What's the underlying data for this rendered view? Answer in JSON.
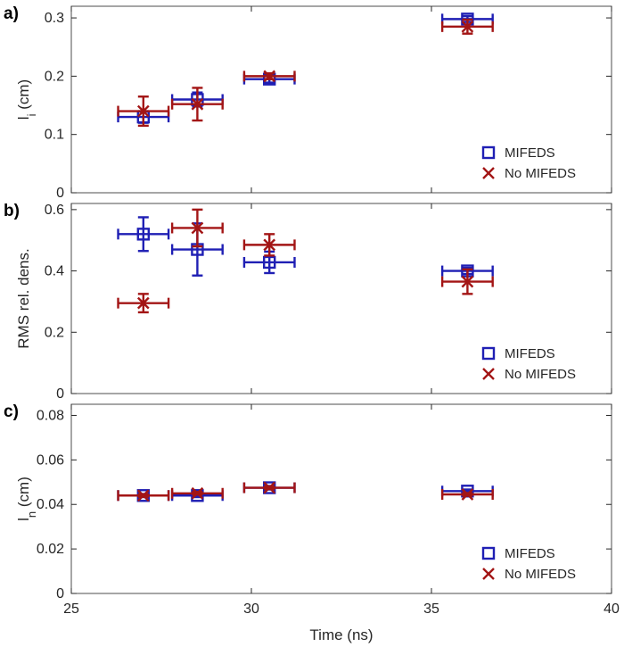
{
  "colors": {
    "mifeds": "#1f1fb4",
    "no_mifeds": "#a31515",
    "axis": "#262626",
    "frame": "#4d4d4d"
  },
  "chart_data": [
    {
      "type": "scatter",
      "panel_label": "a)",
      "ylabel": "l_i (cm)",
      "ylabel_main": "l",
      "ylabel_sub": "i",
      "ylabel_unit": " (cm)",
      "xlim": [
        25,
        40
      ],
      "ylim": [
        0,
        0.32
      ],
      "yticks": [
        0,
        0.1,
        0.2,
        0.3
      ],
      "ytick_labels": [
        "0",
        "0.1",
        "0.2",
        "0.3"
      ],
      "legend_position": "bottom-right",
      "series": [
        {
          "name": "MIFEDS",
          "marker": "square",
          "points": [
            {
              "x": 27.0,
              "y": 0.13,
              "xerr": 0.7,
              "yerr": 0.01
            },
            {
              "x": 28.5,
              "y": 0.16,
              "xerr": 0.7,
              "yerr": 0.012
            },
            {
              "x": 30.5,
              "y": 0.195,
              "xerr": 0.7,
              "yerr": 0.006
            },
            {
              "x": 36.0,
              "y": 0.298,
              "xerr": 0.7,
              "yerr": 0.005
            }
          ]
        },
        {
          "name": "No MIFEDS",
          "marker": "x",
          "points": [
            {
              "x": 27.0,
              "y": 0.14,
              "xerr": 0.7,
              "yerr": 0.025
            },
            {
              "x": 28.5,
              "y": 0.152,
              "xerr": 0.7,
              "yerr": 0.028
            },
            {
              "x": 30.5,
              "y": 0.2,
              "xerr": 0.7,
              "yerr": 0.005
            },
            {
              "x": 36.0,
              "y": 0.285,
              "xerr": 0.7,
              "yerr": 0.012
            }
          ]
        }
      ]
    },
    {
      "type": "scatter",
      "panel_label": "b)",
      "ylabel": "RMS rel. dens.",
      "ylabel_main": "RMS rel. dens.",
      "ylabel_sub": "",
      "ylabel_unit": "",
      "xlim": [
        25,
        40
      ],
      "ylim": [
        0,
        0.62
      ],
      "yticks": [
        0,
        0.2,
        0.4,
        0.6
      ],
      "ytick_labels": [
        "0",
        "0.2",
        "0.4",
        "0.6"
      ],
      "legend_position": "bottom-right",
      "series": [
        {
          "name": "MIFEDS",
          "marker": "square",
          "points": [
            {
              "x": 27.0,
              "y": 0.52,
              "xerr": 0.7,
              "yerr": 0.055
            },
            {
              "x": 28.5,
              "y": 0.47,
              "xerr": 0.7,
              "yerr": 0.085
            },
            {
              "x": 30.5,
              "y": 0.428,
              "xerr": 0.7,
              "yerr": 0.035
            },
            {
              "x": 36.0,
              "y": 0.4,
              "xerr": 0.7,
              "yerr": 0.01
            }
          ]
        },
        {
          "name": "No MIFEDS",
          "marker": "x",
          "points": [
            {
              "x": 27.0,
              "y": 0.295,
              "xerr": 0.7,
              "yerr": 0.03
            },
            {
              "x": 28.5,
              "y": 0.54,
              "xerr": 0.7,
              "yerr": 0.06
            },
            {
              "x": 30.5,
              "y": 0.485,
              "xerr": 0.7,
              "yerr": 0.035
            },
            {
              "x": 36.0,
              "y": 0.365,
              "xerr": 0.7,
              "yerr": 0.04
            }
          ]
        }
      ]
    },
    {
      "type": "scatter",
      "panel_label": "c)",
      "ylabel": "l_n (cm)",
      "ylabel_main": "l",
      "ylabel_sub": "n",
      "ylabel_unit": " (cm)",
      "xlabel": "Time (ns)",
      "xlim": [
        25,
        40
      ],
      "xticks": [
        25,
        30,
        35,
        40
      ],
      "xtick_labels": [
        "25",
        "30",
        "35",
        "40"
      ],
      "ylim": [
        0,
        0.085
      ],
      "yticks": [
        0,
        0.02,
        0.04,
        0.06,
        0.08
      ],
      "ytick_labels": [
        "0",
        "0.02",
        "0.04",
        "0.06",
        "0.08"
      ],
      "legend_position": "bottom-right",
      "series": [
        {
          "name": "MIFEDS",
          "marker": "square",
          "points": [
            {
              "x": 27.0,
              "y": 0.044,
              "xerr": 0.7,
              "yerr": 0.0007
            },
            {
              "x": 28.5,
              "y": 0.044,
              "xerr": 0.7,
              "yerr": 0.0007
            },
            {
              "x": 30.5,
              "y": 0.0475,
              "xerr": 0.7,
              "yerr": 0.0008
            },
            {
              "x": 36.0,
              "y": 0.046,
              "xerr": 0.7,
              "yerr": 0.0007
            }
          ]
        },
        {
          "name": "No MIFEDS",
          "marker": "x",
          "points": [
            {
              "x": 27.0,
              "y": 0.044,
              "xerr": 0.7,
              "yerr": 0.0006
            },
            {
              "x": 28.5,
              "y": 0.045,
              "xerr": 0.7,
              "yerr": 0.0006
            },
            {
              "x": 30.5,
              "y": 0.0475,
              "xerr": 0.7,
              "yerr": 0.0006
            },
            {
              "x": 36.0,
              "y": 0.0445,
              "xerr": 0.7,
              "yerr": 0.0006
            }
          ]
        }
      ]
    }
  ]
}
